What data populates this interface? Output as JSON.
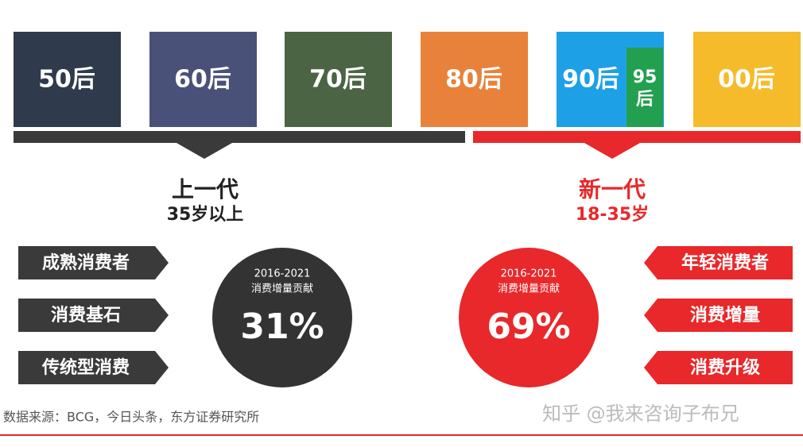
{
  "generations": [
    "50后",
    "60后",
    "70后",
    "80后",
    "90后",
    "00后"
  ],
  "sub_generation": "95后",
  "groups": [
    {
      "title": "上一代",
      "age": "35岁以上",
      "tags": [
        "成熟消费者",
        "消费基石",
        "传统型消费"
      ],
      "circle": {
        "period": "2016-2021",
        "caption": "消费增量贡献",
        "share": "31%"
      }
    },
    {
      "title": "新一代",
      "age": "18-35岁",
      "tags": [
        "年轻消费者",
        "消费增量",
        "消费升级"
      ],
      "circle": {
        "period": "2016-2021",
        "caption": "消费增量贡献",
        "share": "69%"
      }
    }
  ],
  "source": "数据来源：BCG，今日头条，东方证券研究所",
  "watermark": "知乎 @我来咨询子布兄"
}
